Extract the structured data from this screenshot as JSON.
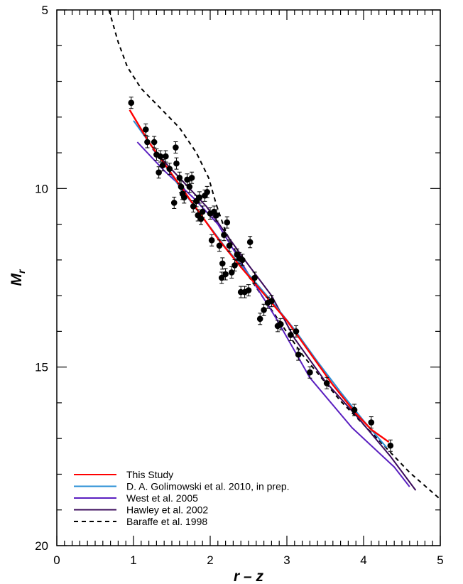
{
  "chart_data": {
    "type": "scatter",
    "title": "",
    "xlabel": "r – z",
    "ylabel": "M",
    "ylabel_subscript": "r",
    "xlim": [
      0,
      5
    ],
    "ylim": [
      20,
      5
    ],
    "y_inverted": true,
    "grid": false,
    "legend_position": "bottom-left",
    "x_ticks": [
      "0",
      "1",
      "2",
      "3",
      "4",
      "5"
    ],
    "y_ticks": [
      "5",
      "10",
      "15",
      "20"
    ],
    "colors": {
      "this_study": "#ff0000",
      "golimowski": "#2a8fd6",
      "west": "#5a1fc0",
      "hawley": "#3a0a5a",
      "baraffe": "#000000",
      "points": "#000000"
    },
    "series": [
      {
        "name": "This Study",
        "style": "solid",
        "x": [
          0.95,
          1.2,
          1.5,
          1.8,
          2.1,
          2.4,
          2.7,
          3.0,
          3.3,
          3.6,
          3.9,
          4.1,
          4.33
        ],
        "y": [
          7.8,
          8.7,
          9.6,
          10.5,
          11.4,
          12.2,
          12.95,
          13.7,
          14.6,
          15.5,
          16.3,
          16.75,
          17.1
        ]
      },
      {
        "name": "D. A. Golimowski et al. 2010, in prep.",
        "style": "solid",
        "x": [
          1.0,
          1.3,
          1.6,
          1.9,
          2.2,
          2.5,
          2.8,
          3.1,
          3.4,
          3.7,
          4.0,
          4.3
        ],
        "y": [
          8.1,
          9.0,
          9.95,
          10.8,
          11.65,
          12.4,
          13.15,
          13.95,
          14.85,
          15.7,
          16.5,
          17.25
        ]
      },
      {
        "name": "West et al. 2005",
        "style": "solid",
        "x": [
          1.05,
          1.4,
          1.8,
          2.1,
          2.5,
          2.85,
          3.3,
          3.85,
          4.4,
          4.6
        ],
        "y": [
          8.7,
          9.5,
          10.3,
          11.0,
          12.4,
          13.6,
          15.3,
          16.7,
          17.8,
          18.35
        ]
      },
      {
        "name": "Hawley et al. 2002",
        "style": "solid",
        "x": [
          1.25,
          1.6,
          1.95,
          2.15,
          2.45,
          2.8,
          3.1,
          3.5,
          3.9,
          4.35,
          4.68
        ],
        "y": [
          8.9,
          9.7,
          10.5,
          11.1,
          12.0,
          13.0,
          14.2,
          15.4,
          16.35,
          17.5,
          18.45
        ]
      },
      {
        "name": "Baraffe et al. 1998",
        "style": "dashed",
        "x": [
          0.68,
          0.8,
          0.92,
          1.1,
          1.35,
          1.6,
          1.82,
          1.98,
          2.08,
          2.2,
          2.45,
          2.8,
          3.2,
          3.7,
          4.2,
          4.6,
          5.0
        ],
        "y": [
          5.0,
          5.9,
          6.6,
          7.2,
          7.75,
          8.3,
          9.0,
          9.7,
          10.45,
          11.2,
          12.3,
          13.4,
          14.65,
          15.95,
          17.05,
          17.95,
          18.7
        ]
      }
    ],
    "points": {
      "x": [
        0.97,
        1.16,
        1.18,
        1.27,
        1.3,
        1.33,
        1.35,
        1.38,
        1.42,
        1.47,
        1.53,
        1.55,
        1.56,
        1.6,
        1.62,
        1.64,
        1.66,
        1.7,
        1.73,
        1.76,
        1.78,
        1.82,
        1.84,
        1.86,
        1.88,
        1.9,
        1.93,
        1.96,
        2.0,
        2.02,
        2.05,
        2.08,
        2.12,
        2.15,
        2.16,
        2.18,
        2.2,
        2.22,
        2.25,
        2.28,
        2.32,
        2.35,
        2.38,
        2.4,
        2.42,
        2.45,
        2.5,
        2.52,
        2.58,
        2.65,
        2.7,
        2.75,
        2.8,
        2.88,
        2.92,
        3.05,
        3.12,
        3.15,
        3.3,
        3.52,
        3.88,
        4.1,
        4.35
      ],
      "y": [
        7.6,
        8.35,
        8.7,
        8.7,
        9.05,
        9.55,
        9.1,
        9.35,
        9.1,
        9.45,
        10.4,
        8.85,
        9.3,
        9.7,
        9.95,
        10.15,
        10.25,
        9.75,
        9.95,
        9.7,
        10.5,
        10.35,
        10.75,
        10.25,
        10.85,
        10.65,
        10.2,
        10.1,
        10.7,
        11.45,
        10.65,
        10.75,
        11.6,
        12.5,
        12.1,
        11.3,
        12.4,
        10.95,
        11.6,
        12.35,
        12.15,
        11.85,
        11.95,
        12.9,
        12.0,
        12.9,
        12.85,
        11.5,
        12.5,
        13.65,
        13.4,
        13.2,
        13.15,
        13.85,
        13.8,
        14.1,
        14.0,
        14.65,
        15.15,
        15.45,
        16.2,
        16.55,
        17.2
      ]
    }
  }
}
